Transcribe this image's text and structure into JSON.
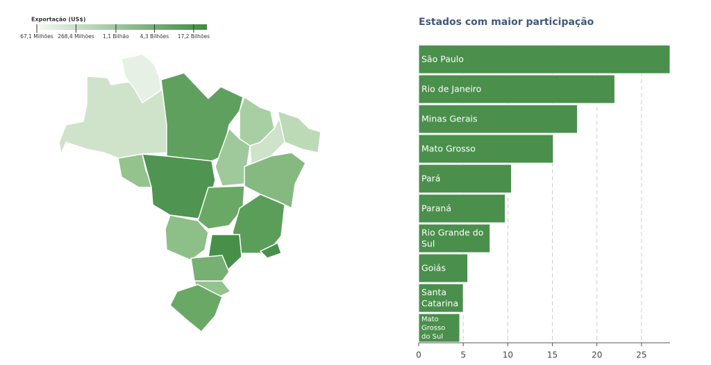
{
  "chart_data": [
    {
      "type": "choropleth",
      "legend_title": "Exportação (US$)",
      "log": true,
      "clim": [
        67100000,
        27500000000
      ],
      "scale_ticks": [
        {
          "value": 67100000,
          "label": "67,1 Milhões"
        },
        {
          "value": 268400000,
          "label": "268,4 Milhões"
        },
        {
          "value": 1100000000,
          "label": "1,1 Bilhão"
        },
        {
          "value": 4300000000,
          "label": "4,3 Bilhões"
        },
        {
          "value": 17200000000,
          "label": "17,2 Bilhões"
        }
      ],
      "colors": [
        "#f4f8f3",
        "#3f8a41"
      ]
    },
    {
      "type": "barh",
      "title": "Estados com maior participação",
      "categories": [
        "São Paulo",
        "Rio de Janeiro",
        "Minas Gerais",
        "Mato Grosso",
        "Pará",
        "Paraná",
        "Rio Grande do Sul",
        "Goiás",
        "Santa Catarina",
        "Mato Grosso do Sul"
      ],
      "values": [
        28.2,
        22.0,
        17.8,
        15.1,
        10.4,
        9.7,
        8.0,
        5.5,
        5.0,
        4.6
      ],
      "color": "#4a8f4c",
      "xlim": [
        0,
        28.2
      ],
      "xticks": [
        0,
        5,
        10,
        15,
        20,
        25
      ],
      "grid": true
    }
  ]
}
